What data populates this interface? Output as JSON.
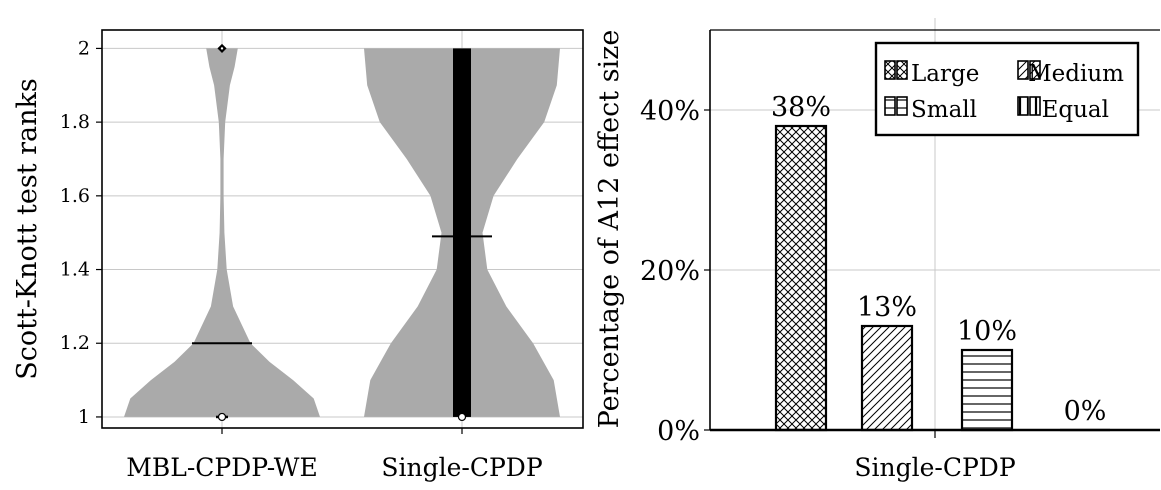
{
  "chart_data": [
    {
      "type": "violin",
      "ylabel": "Scott-Knott test ranks",
      "xlabel": "",
      "ylim": [
        0.97,
        2.05
      ],
      "yticks": [
        "1",
        "1.2",
        "1.4",
        "1.6",
        "1.8",
        "2"
      ],
      "ytick_values": [
        1,
        1.2,
        1.4,
        1.6,
        1.8,
        2
      ],
      "grid": true,
      "fill_color": "#aaaaaa",
      "series": [
        {
          "name": "MBL-CPDP-WE",
          "mean": 1.2,
          "median": 1,
          "iqr": [
            1,
            1
          ],
          "outliers": [
            2
          ],
          "density": [
            [
              1.0,
              0.62
            ],
            [
              1.05,
              0.58
            ],
            [
              1.1,
              0.45
            ],
            [
              1.15,
              0.3
            ],
            [
              1.2,
              0.18
            ],
            [
              1.3,
              0.07
            ],
            [
              1.4,
              0.03
            ],
            [
              1.5,
              0.015
            ],
            [
              1.6,
              0.01
            ],
            [
              1.7,
              0.01
            ],
            [
              1.8,
              0.02
            ],
            [
              1.9,
              0.05
            ],
            [
              1.95,
              0.08
            ],
            [
              2.0,
              0.1
            ]
          ]
        },
        {
          "name": "Single-CPDP",
          "mean": 1.49,
          "median": 1,
          "iqr": [
            1,
            2
          ],
          "outliers": [],
          "density": [
            [
              1.0,
              0.62
            ],
            [
              1.1,
              0.58
            ],
            [
              1.2,
              0.45
            ],
            [
              1.3,
              0.28
            ],
            [
              1.4,
              0.16
            ],
            [
              1.5,
              0.13
            ],
            [
              1.6,
              0.2
            ],
            [
              1.7,
              0.35
            ],
            [
              1.8,
              0.52
            ],
            [
              1.9,
              0.6
            ],
            [
              2.0,
              0.62
            ]
          ]
        }
      ]
    },
    {
      "type": "bar",
      "ylabel": "Percentage of A12 effect size",
      "xlabel": "",
      "category_label": "Single-CPDP",
      "ylim": [
        0,
        50
      ],
      "yticks": [
        "0%",
        "20%",
        "40%"
      ],
      "ytick_values": [
        0,
        20,
        40
      ],
      "grid": true,
      "legend_position": "top-right",
      "categories": [
        "Large",
        "Medium",
        "Small",
        "Equal"
      ],
      "values": [
        38,
        13,
        10,
        0
      ],
      "data_labels": [
        "38%",
        "13%",
        "10%",
        "0%"
      ],
      "legend": [
        "Large",
        "Medium",
        "Small",
        "Equal"
      ]
    }
  ]
}
